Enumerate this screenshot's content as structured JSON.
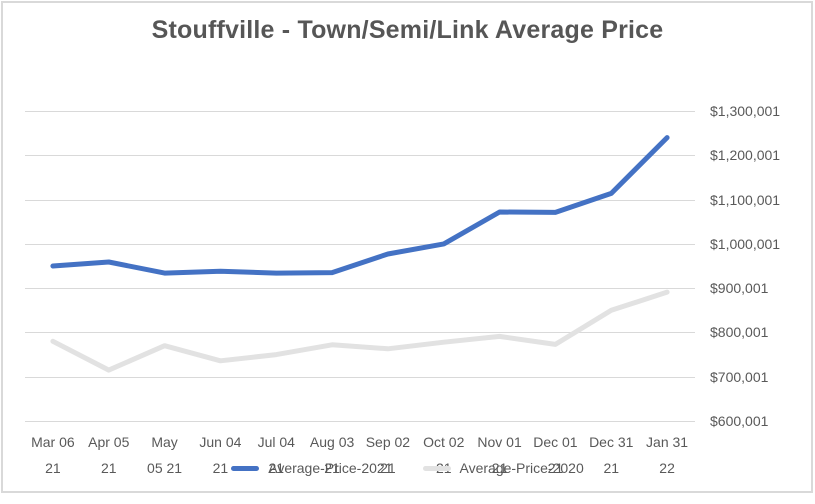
{
  "title": "Stouffville - Town/Semi/Link Average Price",
  "colors": {
    "gridline": "#D9D9D9",
    "frame_border": "#D9D9D9",
    "axis_text": "#595959",
    "title_text": "#565656",
    "series_2021": "#4472C4",
    "series_2020": "#E2E2E2"
  },
  "legend": {
    "items": [
      {
        "label": "Average-Price-2021",
        "swatch": "line-swatch",
        "color": "#4472C4"
      },
      {
        "label": "Average-Price-2020",
        "swatch": "line-swatch",
        "color": "#E2E2E2"
      }
    ]
  },
  "chart_data": {
    "type": "line",
    "title": "Stouffville - Town/Semi/Link Average Price",
    "categories": [
      "Mar 06 21",
      "Apr 05 21",
      "May 05 21",
      "Jun 04 21",
      "Jul 04 21",
      "Aug 03 21",
      "Sep 02 21",
      "Oct 02 21",
      "Nov 01 21",
      "Dec 01 21",
      "Dec 31 21",
      "Jan 31 22"
    ],
    "category_labels_two_line": [
      [
        "Mar 06",
        "21"
      ],
      [
        "Apr 05",
        "21"
      ],
      [
        "May",
        "05 21"
      ],
      [
        "Jun 04",
        "21"
      ],
      [
        "Jul 04",
        "21"
      ],
      [
        "Aug 03",
        "21"
      ],
      [
        "Sep 02",
        "21"
      ],
      [
        "Oct 02",
        "21"
      ],
      [
        "Nov 01",
        "21"
      ],
      [
        "Dec 01",
        "21"
      ],
      [
        "Dec 31",
        "21"
      ],
      [
        "Jan 31",
        "22"
      ]
    ],
    "series": [
      {
        "name": "Average-Price-2021",
        "color": "#4472C4",
        "values": [
          950000,
          959000,
          934000,
          938000,
          934000,
          935000,
          977000,
          1000000,
          1072000,
          1071000,
          1114000,
          1240000
        ]
      },
      {
        "name": "Average-Price-2020",
        "color": "#E2E2E2",
        "values": [
          780000,
          715000,
          770000,
          736000,
          750000,
          772000,
          763000,
          778000,
          791000,
          773000,
          850000,
          891000
        ]
      }
    ],
    "xlabel": "",
    "ylabel": "",
    "ylim": [
      600001,
      1300001
    ],
    "ytick_values": [
      600001,
      700001,
      800001,
      900001,
      1000001,
      1100001,
      1200001,
      1300001
    ],
    "ytick_labels": [
      "$600,001",
      "$700,001",
      "$800,001",
      "$900,001",
      "$1,000,001",
      "$1,100,001",
      "$1,200,001",
      "$1,300,001"
    ],
    "yaxis_side": "right",
    "grid": "horizontal",
    "legend_position": "bottom-center"
  }
}
